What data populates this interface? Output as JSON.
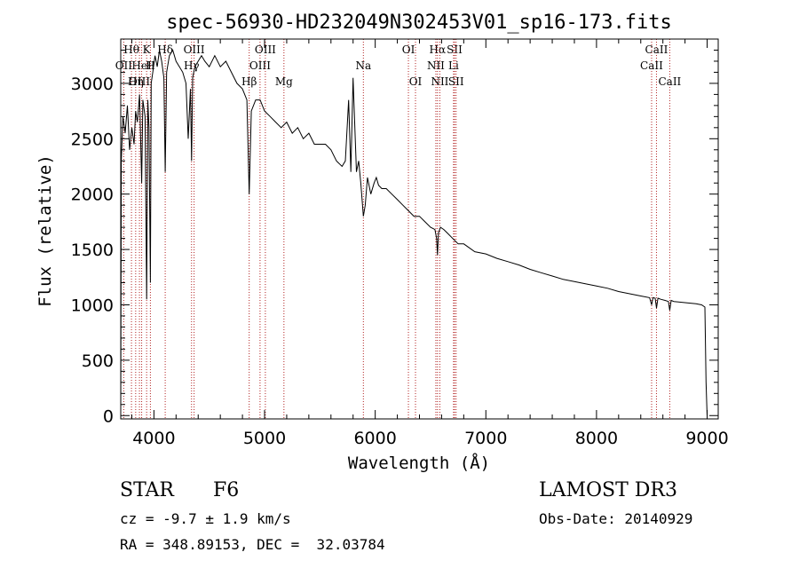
{
  "chart_data": {
    "type": "line",
    "title": "spec-56930-HD232049N302453V01_sp16-173.fits",
    "xlabel": "Wavelength (Å)",
    "ylabel": "Flux (relative)",
    "xlim": [
      3700,
      9100
    ],
    "ylim": [
      -30,
      3400
    ],
    "xticks": [
      4000,
      5000,
      6000,
      7000,
      8000,
      9000
    ],
    "yticks": [
      0,
      500,
      1000,
      1500,
      2000,
      2500,
      3000
    ],
    "xtick_labels": [
      "4000",
      "5000",
      "6000",
      "7000",
      "8000",
      "9000"
    ],
    "ytick_labels": [
      "0",
      "500",
      "1000",
      "1500",
      "2000",
      "2500",
      "3000"
    ],
    "grid": false,
    "series": [
      {
        "name": "spectrum",
        "x": [
          3700,
          3705,
          3720,
          3740,
          3760,
          3780,
          3800,
          3820,
          3835,
          3850,
          3870,
          3889,
          3900,
          3920,
          3934,
          3945,
          3955,
          3968,
          3975,
          3990,
          4010,
          4030,
          4050,
          4070,
          4090,
          4102,
          4115,
          4140,
          4170,
          4200,
          4230,
          4260,
          4290,
          4310,
          4330,
          4340,
          4350,
          4370,
          4400,
          4430,
          4460,
          4500,
          4550,
          4600,
          4650,
          4700,
          4750,
          4800,
          4840,
          4861,
          4880,
          4920,
          4960,
          5000,
          5050,
          5100,
          5150,
          5200,
          5250,
          5300,
          5350,
          5400,
          5450,
          5500,
          5550,
          5600,
          5650,
          5700,
          5730,
          5760,
          5780,
          5800,
          5830,
          5850,
          5870,
          5893,
          5910,
          5930,
          5960,
          5990,
          6010,
          6030,
          6060,
          6100,
          6150,
          6200,
          6250,
          6300,
          6350,
          6400,
          6450,
          6500,
          6540,
          6555,
          6563,
          6572,
          6590,
          6620,
          6650,
          6700,
          6750,
          6800,
          6900,
          7000,
          7100,
          7200,
          7300,
          7400,
          7500,
          7600,
          7700,
          7800,
          7900,
          8000,
          8100,
          8200,
          8300,
          8400,
          8480,
          8498,
          8510,
          8530,
          8542,
          8555,
          8580,
          8620,
          8650,
          8662,
          8675,
          8700,
          8800,
          8900,
          8950,
          8980,
          8990,
          9000
        ],
        "y": [
          0,
          2300,
          2700,
          2550,
          2800,
          2400,
          2600,
          2450,
          2750,
          2650,
          2900,
          2100,
          2850,
          2700,
          1050,
          2850,
          2600,
          1200,
          3000,
          3100,
          3250,
          3150,
          3300,
          3200,
          3050,
          2200,
          3100,
          3250,
          3300,
          3200,
          3150,
          3100,
          3000,
          2500,
          2950,
          2300,
          3050,
          3150,
          3200,
          3250,
          3200,
          3150,
          3250,
          3150,
          3200,
          3100,
          3000,
          2950,
          2850,
          2000,
          2750,
          2850,
          2850,
          2750,
          2700,
          2650,
          2600,
          2650,
          2550,
          2600,
          2500,
          2550,
          2450,
          2450,
          2450,
          2400,
          2300,
          2250,
          2300,
          2850,
          2200,
          3050,
          2200,
          2300,
          2100,
          1800,
          1900,
          2150,
          2000,
          2100,
          2150,
          2080,
          2050,
          2050,
          2000,
          1950,
          1900,
          1850,
          1800,
          1800,
          1750,
          1700,
          1680,
          1600,
          1450,
          1650,
          1700,
          1680,
          1650,
          1600,
          1550,
          1550,
          1480,
          1460,
          1420,
          1390,
          1360,
          1320,
          1290,
          1260,
          1230,
          1210,
          1190,
          1170,
          1150,
          1120,
          1100,
          1080,
          1065,
          1000,
          1065,
          1060,
          970,
          1060,
          1050,
          1040,
          1030,
          950,
          1040,
          1030,
          1020,
          1010,
          1000,
          980,
          300,
          0
        ]
      }
    ],
    "lines": [
      {
        "name": "Hθ",
        "x": 3797,
        "row": 0
      },
      {
        "name": "OII",
        "x": 3727,
        "row": 1
      },
      {
        "name": "OIII",
        "x": 3869,
        "row": 2
      },
      {
        "name": "K",
        "x": 3934,
        "row": 0
      },
      {
        "name": "HeI",
        "x": 3889,
        "row": 1
      },
      {
        "name": "Hη",
        "x": 3835,
        "row": 2
      },
      {
        "name": "H",
        "x": 3968,
        "row": 1
      },
      {
        "name": "Hδ",
        "x": 4102,
        "row": 0
      },
      {
        "name": "OIII",
        "x": 4363,
        "row": 0
      },
      {
        "name": "Hγ",
        "x": 4340,
        "row": 1
      },
      {
        "name": "Hβ",
        "x": 4861,
        "row": 2
      },
      {
        "name": "OIII",
        "x": 4959,
        "row": 1
      },
      {
        "name": "OIII",
        "x": 5007,
        "row": 0
      },
      {
        "name": "Mg",
        "x": 5175,
        "row": 2
      },
      {
        "name": "Na",
        "x": 5893,
        "row": 1
      },
      {
        "name": "OI",
        "x": 6300,
        "row": 0
      },
      {
        "name": "OI",
        "x": 6364,
        "row": 2
      },
      {
        "name": "Hα",
        "x": 6563,
        "row": 0
      },
      {
        "name": "NII",
        "x": 6548,
        "row": 1
      },
      {
        "name": "NII",
        "x": 6584,
        "row": 2
      },
      {
        "name": "SII",
        "x": 6717,
        "row": 0
      },
      {
        "name": "Li",
        "x": 6708,
        "row": 1
      },
      {
        "name": "SII",
        "x": 6731,
        "row": 2
      },
      {
        "name": "CaII",
        "x": 8542,
        "row": 0
      },
      {
        "name": "CaII",
        "x": 8498,
        "row": 1
      },
      {
        "name": "CaII",
        "x": 8662,
        "row": 2
      }
    ]
  },
  "info": {
    "object_type": "STAR",
    "subclass": "F6",
    "survey": "LAMOST DR3",
    "cz": "cz = -9.7 ± 1.9 km/s",
    "obs_date": "Obs-Date: 20140929",
    "coords": "RA = 348.89153, DEC =  32.03784"
  }
}
